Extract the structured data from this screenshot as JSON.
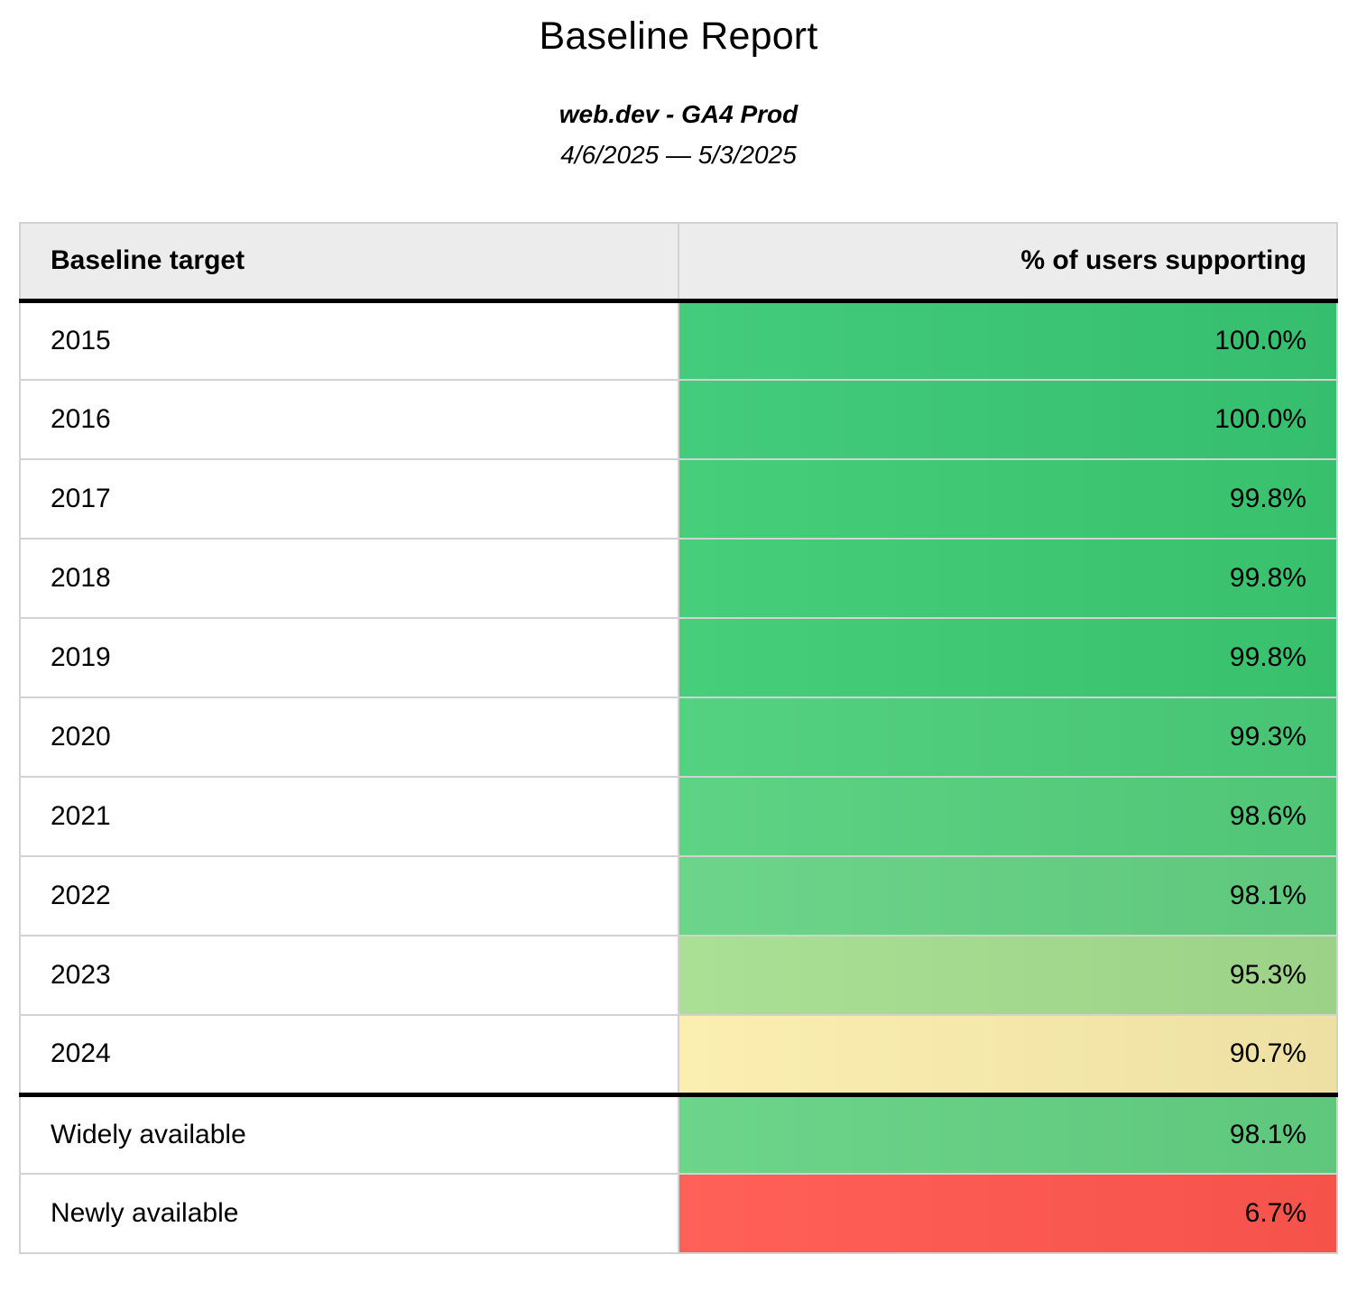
{
  "report": {
    "title": "Baseline Report",
    "property": "web.dev - GA4 Prod",
    "date_range": "4/6/2025 — 5/3/2025"
  },
  "table": {
    "columns": [
      {
        "label": "Baseline target"
      },
      {
        "label": "% of users supporting"
      }
    ],
    "rows": [
      {
        "target": "2015",
        "value": "100.0%",
        "color": "#3bc474",
        "section_start": false
      },
      {
        "target": "2016",
        "value": "100.0%",
        "color": "#3bc474",
        "section_start": false
      },
      {
        "target": "2017",
        "value": "99.8%",
        "color": "#3ec672",
        "section_start": false
      },
      {
        "target": "2018",
        "value": "99.8%",
        "color": "#3ec672",
        "section_start": false
      },
      {
        "target": "2019",
        "value": "99.8%",
        "color": "#3ec672",
        "section_start": false
      },
      {
        "target": "2020",
        "value": "99.3%",
        "color": "#4cc979",
        "section_start": false
      },
      {
        "target": "2021",
        "value": "98.6%",
        "color": "#57cb7c",
        "section_start": false
      },
      {
        "target": "2022",
        "value": "98.1%",
        "color": "#64cd82",
        "section_start": false
      },
      {
        "target": "2023",
        "value": "95.3%",
        "color": "#a2d88d",
        "section_start": false
      },
      {
        "target": "2024",
        "value": "90.7%",
        "color": "#f3e6a8",
        "section_start": false
      },
      {
        "target": "Widely available",
        "value": "98.1%",
        "color": "#64cd82",
        "section_start": true
      },
      {
        "target": "Newly available",
        "value": "6.7%",
        "color": "#fb5850",
        "section_start": false
      }
    ]
  },
  "theme": {
    "header_background": "#ececec",
    "grid_border": "#d2d2d2",
    "section_divider": "#000000"
  },
  "chart_data": {
    "type": "table",
    "title": "Baseline Report",
    "subtitle": "web.dev - GA4 Prod",
    "date_range": "4/6/2025 — 5/3/2025",
    "columns": [
      "Baseline target",
      "% of users supporting"
    ],
    "categories": [
      "2015",
      "2016",
      "2017",
      "2018",
      "2019",
      "2020",
      "2021",
      "2022",
      "2023",
      "2024",
      "Widely available",
      "Newly available"
    ],
    "values": [
      100.0,
      100.0,
      99.8,
      99.8,
      99.8,
      99.3,
      98.6,
      98.1,
      95.3,
      90.7,
      98.1,
      6.7
    ],
    "value_unit": "%",
    "layout_hints": {
      "value_column_color_scale": "green (high support) -> yellow (moderate) -> red (low support)",
      "thick_divider_after_row": "2024"
    }
  }
}
